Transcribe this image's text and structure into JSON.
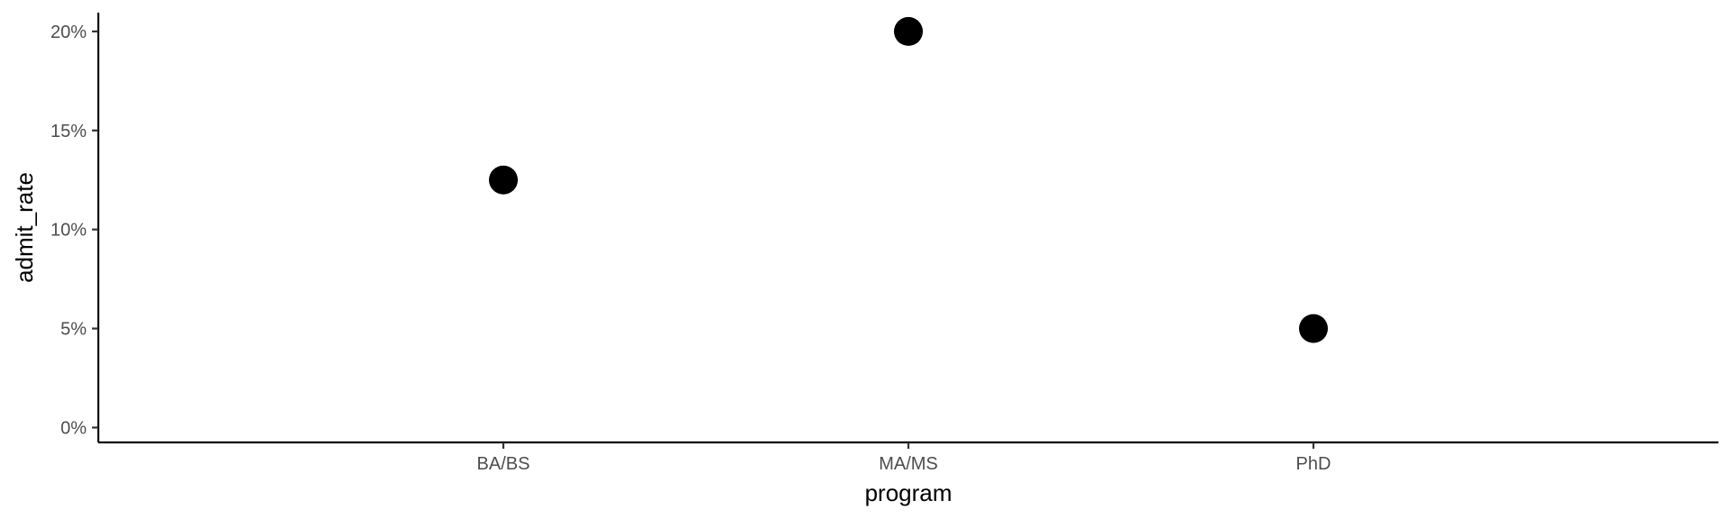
{
  "chart_data": {
    "type": "scatter",
    "title": "",
    "xlabel": "program",
    "ylabel": "admit_rate",
    "categories": [
      "BA/BS",
      "MA/MS",
      "PhD"
    ],
    "values": [
      0.125,
      0.2,
      0.05
    ],
    "y_ticks": [
      0,
      0.05,
      0.1,
      0.15,
      0.2
    ],
    "y_tick_labels": [
      "0%",
      "5%",
      "10%",
      "15%",
      "20%"
    ],
    "ylim": [
      -0.0075,
      0.2095
    ],
    "grid": false,
    "legend": "none",
    "colors": {
      "point": "#000000",
      "axis": "#000000",
      "tick_text": "#4d4d4d"
    }
  }
}
